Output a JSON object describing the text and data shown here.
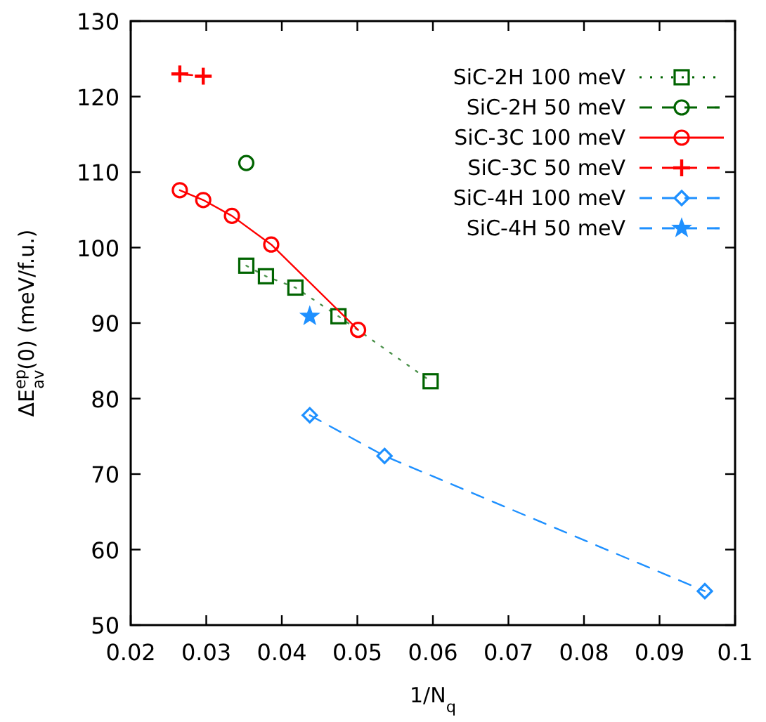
{
  "chart_data": {
    "type": "line",
    "xlabel": "1/N$_{q}$",
    "ylabel": "ΔE$^{ep}$$_{av}$(0) (meV/f.u.)",
    "xlim": [
      0.02,
      0.1
    ],
    "xticks": [
      0.02,
      0.03,
      0.04,
      0.05,
      0.06,
      0.07,
      0.08,
      0.09,
      {
        "value": 0.1,
        "label": "0.1"
      }
    ],
    "ylim": [
      50,
      130
    ],
    "yticks": [
      50,
      60,
      70,
      80,
      90,
      100,
      110,
      120,
      130
    ],
    "grid": false,
    "legend": "top right",
    "series": [
      {
        "name": "SiC-2H 100 meV",
        "color": "#006400",
        "marker": "square",
        "line_style": "dotted",
        "x": [
          0.0353,
          0.0379,
          0.0418,
          0.0475,
          0.0597
        ],
        "values": [
          97.6,
          96.2,
          94.7,
          90.9,
          82.3
        ]
      },
      {
        "name": "SiC-2H 50 meV",
        "color": "#006400",
        "marker": "circle",
        "line_style": "dashed",
        "x": [
          0.0353
        ],
        "values": [
          111.2
        ]
      },
      {
        "name": "SiC-3C 100 meV",
        "color": "#ff0000",
        "marker": "circle",
        "line_style": "solid",
        "x": [
          0.0265,
          0.0296,
          0.0334,
          0.0386,
          0.0501
        ],
        "values": [
          107.6,
          106.3,
          104.2,
          100.4,
          89.1
        ]
      },
      {
        "name": "SiC-3C 50 meV",
        "color": "#ff0000",
        "marker": "cross",
        "line_style": "dashed",
        "x": [
          0.0265,
          0.0296
        ],
        "values": [
          123.0,
          122.7
        ]
      },
      {
        "name": "SiC-4H 100 meV",
        "color": "#1e90ff",
        "marker": "diamond",
        "line_style": "dashed",
        "x": [
          0.0437,
          0.0536,
          0.096
        ],
        "values": [
          77.8,
          72.4,
          54.5
        ]
      },
      {
        "name": "SiC-4H 50 meV",
        "color": "#1e90ff",
        "marker": "star",
        "line_style": "dashed",
        "x": [
          0.0437
        ],
        "values": [
          90.9
        ]
      }
    ]
  }
}
